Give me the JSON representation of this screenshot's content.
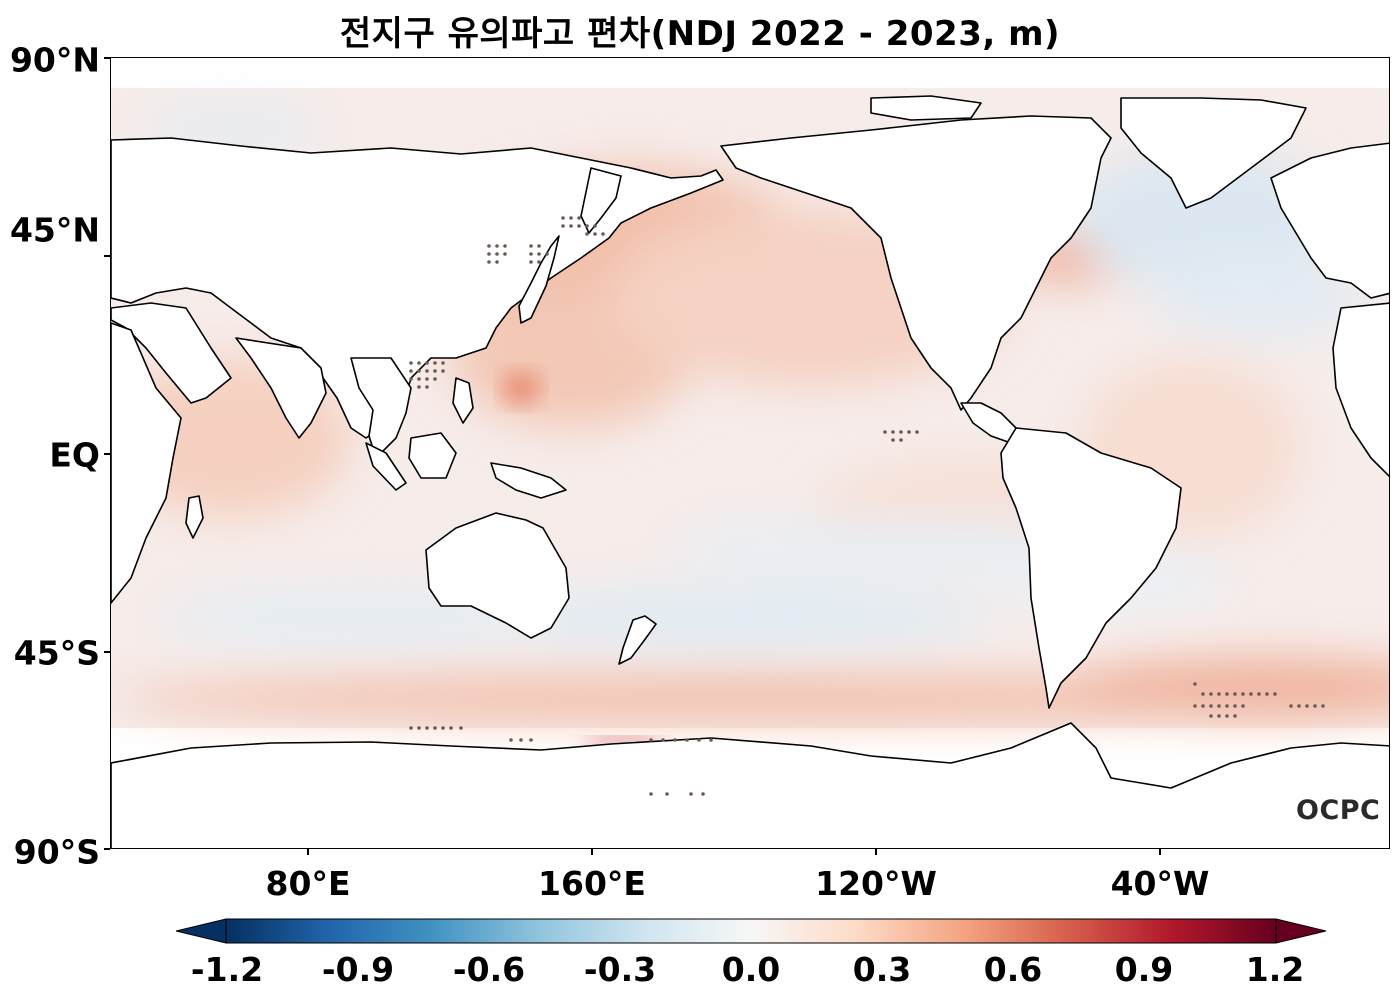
{
  "title": "전지구 유의파고 편차(NDJ 2022 - 2023, m)",
  "lat_labels": [
    "90°N",
    "45°N",
    "EQ",
    "45°S",
    "90°S"
  ],
  "lon_labels": [
    "80°E",
    "160°E",
    "120°W",
    "40°W"
  ],
  "colorbar": {
    "ticks": [
      "-1.2",
      "-0.9",
      "-0.6",
      "-0.3",
      "0.0",
      "0.3",
      "0.6",
      "0.9",
      "1.2"
    ],
    "colormap": [
      "#053061",
      "#2166ac",
      "#4393c3",
      "#92c5de",
      "#d1e5f0",
      "#f7f7f7",
      "#fddbc7",
      "#f4a582",
      "#d6604d",
      "#b2182b",
      "#67001f"
    ]
  },
  "logo": "OCPC",
  "colors": {
    "land": "#ffffff",
    "coast": "#000000",
    "ocean_neutral": "#f6ecea",
    "positive": "#f2b8a0",
    "negative": "#d8e6f1",
    "stipple": "#6e5a55"
  }
}
